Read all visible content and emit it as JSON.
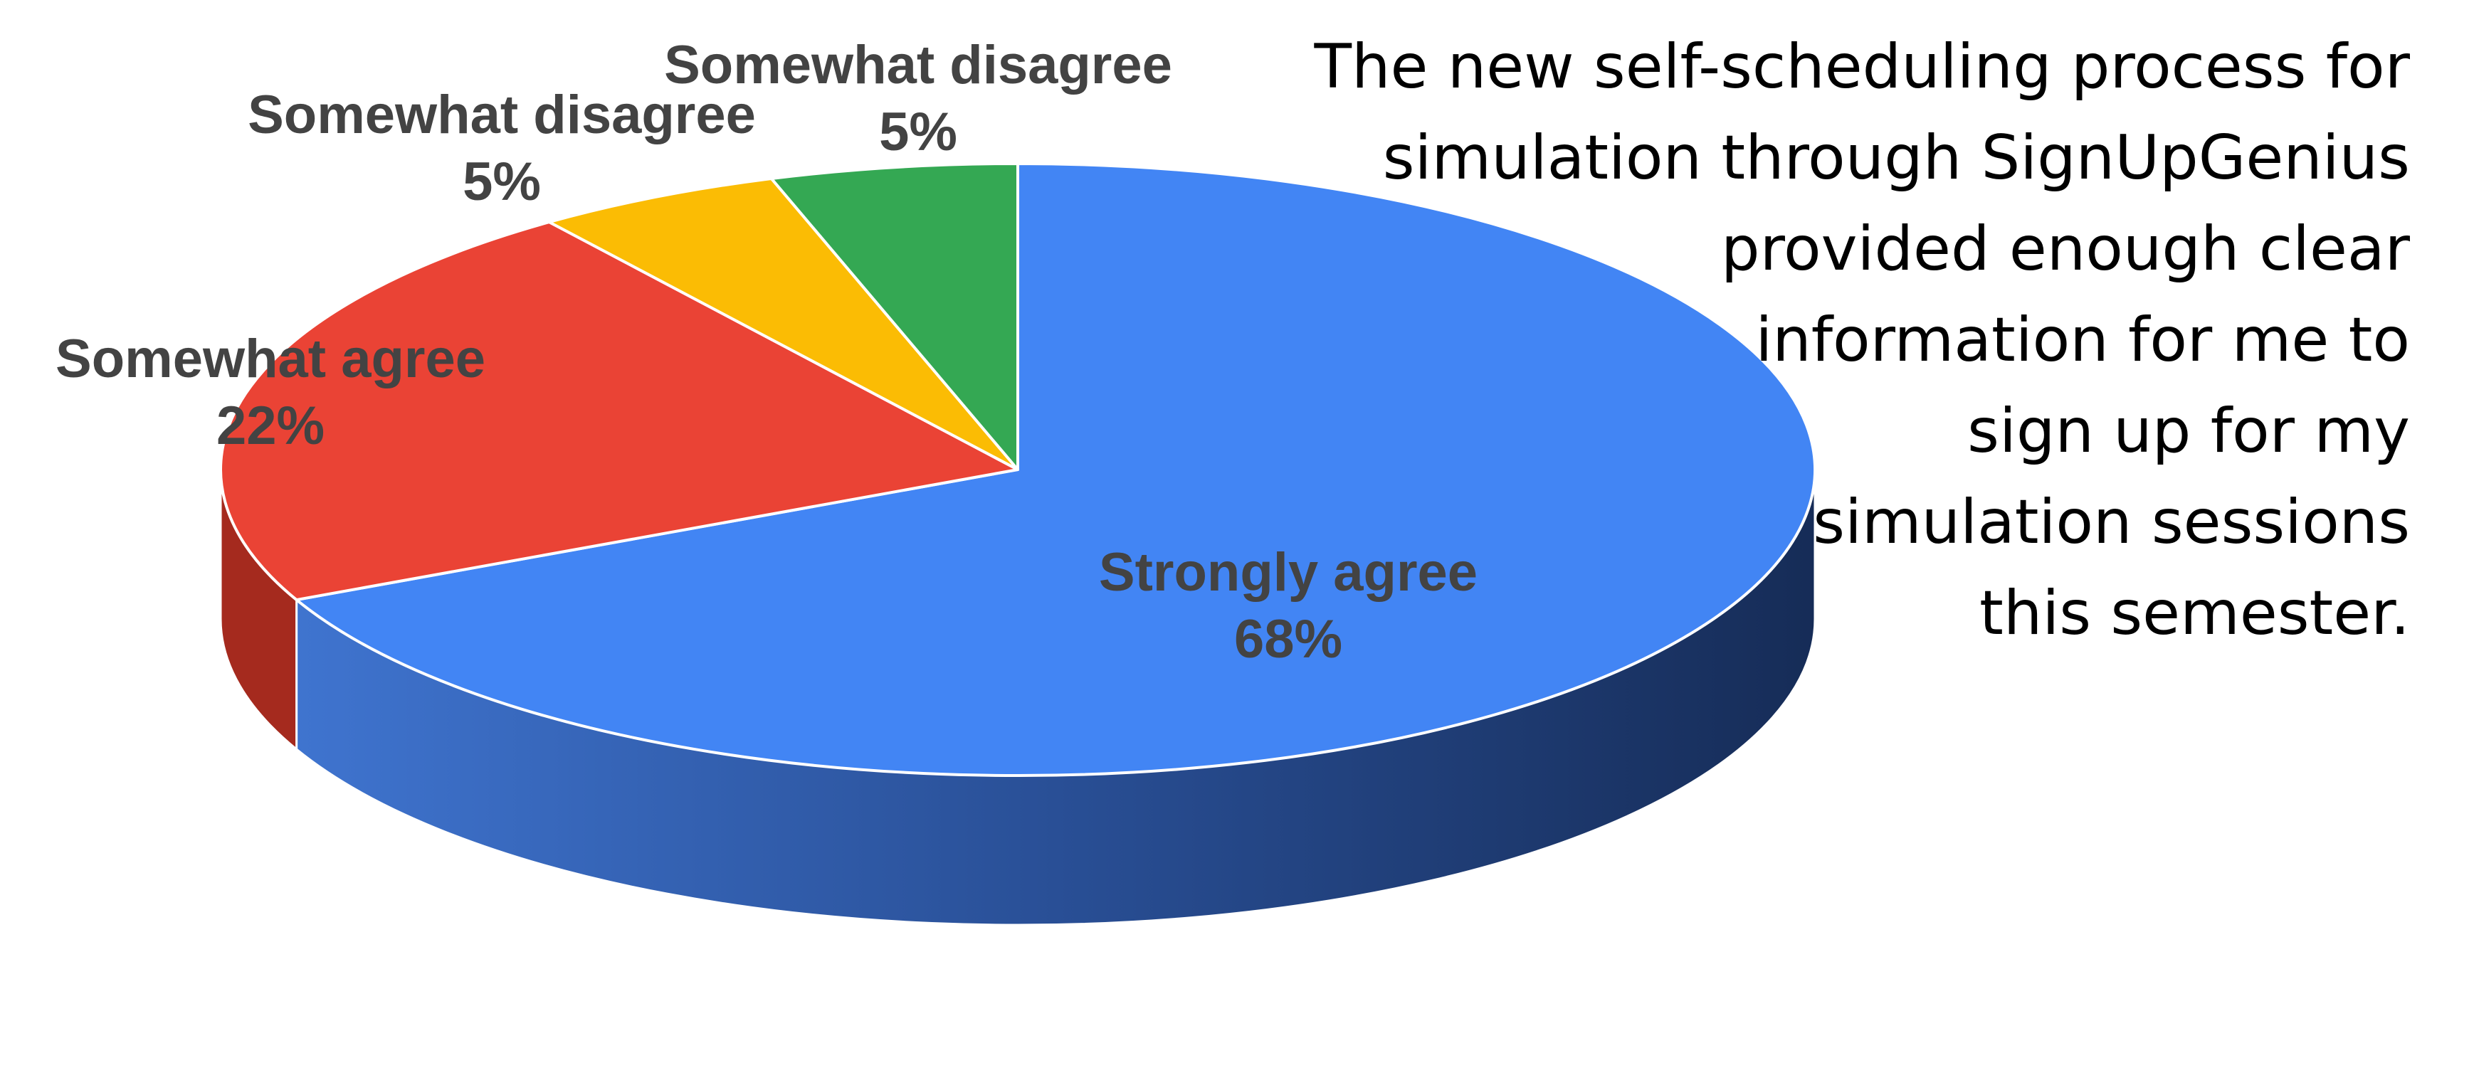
{
  "chart_data": {
    "type": "pie",
    "style": "3d",
    "categories": [
      "Strongly agree",
      "Somewhat agree",
      "Somewhat disagree",
      "Somewhat disagree"
    ],
    "values": [
      68,
      22,
      5,
      5
    ],
    "value_labels": [
      "68%",
      "22%",
      "5%",
      "5%"
    ],
    "colors": [
      "#4285f4",
      "#ea4335",
      "#fbbc04",
      "#34a853"
    ],
    "side_colors": [
      "#1c3664",
      "#a52a1e",
      "#b98a00",
      "#1e7a3c"
    ],
    "start_angle_deg": 90,
    "direction": "clockwise",
    "legend": "none",
    "title": ""
  },
  "annotation": {
    "lines": [
      "The new self-scheduling process for",
      "simulation through SignUpGenius",
      "provided enough clear",
      "information for me to",
      "sign up for my",
      "simulation sessions",
      "this semester."
    ]
  }
}
